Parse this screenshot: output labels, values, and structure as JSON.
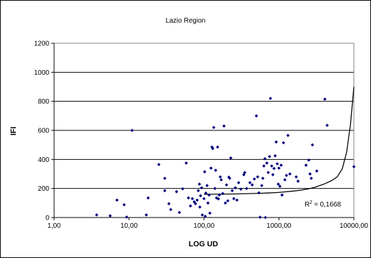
{
  "chart_data": {
    "type": "scatter",
    "title": "Lazio Region",
    "xlabel": "LOG UD",
    "ylabel": "IFI",
    "x_scale": "log",
    "xlim": [
      1,
      10000
    ],
    "ylim": [
      0,
      1200
    ],
    "x_ticks": [
      1,
      10,
      100,
      1000,
      10000
    ],
    "x_tick_labels": [
      "1,00",
      "10,00",
      "100,00",
      "1000,00",
      "10000,00"
    ],
    "y_ticks": [
      0,
      200,
      400,
      600,
      800,
      1000,
      1200
    ],
    "y_tick_labels": [
      "0",
      "200",
      "400",
      "600",
      "800",
      "1000",
      "1200"
    ],
    "grid": "horizontal",
    "legend": "none",
    "colors": {
      "points": "#000080",
      "trendline": "#000000",
      "gridlines": "#000000"
    },
    "r_squared_label": "R",
    "r_squared_exp": "2",
    "r_squared_value": " = 0,1668",
    "points": [
      {
        "x": 3.7,
        "y": 18
      },
      {
        "x": 5.6,
        "y": 12
      },
      {
        "x": 6.9,
        "y": 120
      },
      {
        "x": 8.6,
        "y": 88
      },
      {
        "x": 9.3,
        "y": 3
      },
      {
        "x": 11,
        "y": 600
      },
      {
        "x": 17,
        "y": 18
      },
      {
        "x": 18,
        "y": 135
      },
      {
        "x": 25,
        "y": 365
      },
      {
        "x": 30,
        "y": 270
      },
      {
        "x": 30,
        "y": 185
      },
      {
        "x": 34,
        "y": 95
      },
      {
        "x": 36,
        "y": 55
      },
      {
        "x": 43,
        "y": 178
      },
      {
        "x": 47,
        "y": 35
      },
      {
        "x": 52,
        "y": 198
      },
      {
        "x": 58,
        "y": 375
      },
      {
        "x": 62,
        "y": 135
      },
      {
        "x": 66,
        "y": 80
      },
      {
        "x": 70,
        "y": 130
      },
      {
        "x": 74,
        "y": 108
      },
      {
        "x": 77,
        "y": 95
      },
      {
        "x": 81,
        "y": 120
      },
      {
        "x": 84,
        "y": 185
      },
      {
        "x": 87,
        "y": 230
      },
      {
        "x": 88,
        "y": 72
      },
      {
        "x": 90,
        "y": 150
      },
      {
        "x": 93,
        "y": 205
      },
      {
        "x": 95,
        "y": 18
      },
      {
        "x": 100,
        "y": 130
      },
      {
        "x": 102,
        "y": 315
      },
      {
        "x": 104,
        "y": 8
      },
      {
        "x": 106,
        "y": 168
      },
      {
        "x": 110,
        "y": 220
      },
      {
        "x": 113,
        "y": 100
      },
      {
        "x": 117,
        "y": 155
      },
      {
        "x": 120,
        "y": 30
      },
      {
        "x": 124,
        "y": 340
      },
      {
        "x": 128,
        "y": 485
      },
      {
        "x": 131,
        "y": 475
      },
      {
        "x": 135,
        "y": 620
      },
      {
        "x": 140,
        "y": 200
      },
      {
        "x": 143,
        "y": 325
      },
      {
        "x": 147,
        "y": 135
      },
      {
        "x": 152,
        "y": 485
      },
      {
        "x": 156,
        "y": 128
      },
      {
        "x": 160,
        "y": 155
      },
      {
        "x": 165,
        "y": 280
      },
      {
        "x": 170,
        "y": 260
      },
      {
        "x": 178,
        "y": 165
      },
      {
        "x": 185,
        "y": 630
      },
      {
        "x": 193,
        "y": 100
      },
      {
        "x": 200,
        "y": 225
      },
      {
        "x": 208,
        "y": 115
      },
      {
        "x": 215,
        "y": 278
      },
      {
        "x": 220,
        "y": 270
      },
      {
        "x": 228,
        "y": 410
      },
      {
        "x": 238,
        "y": 185
      },
      {
        "x": 250,
        "y": 130
      },
      {
        "x": 262,
        "y": 205
      },
      {
        "x": 275,
        "y": 120
      },
      {
        "x": 290,
        "y": 240
      },
      {
        "x": 310,
        "y": 195
      },
      {
        "x": 340,
        "y": 295
      },
      {
        "x": 350,
        "y": 310
      },
      {
        "x": 370,
        "y": 200
      },
      {
        "x": 410,
        "y": 240
      },
      {
        "x": 440,
        "y": 225
      },
      {
        "x": 470,
        "y": 265
      },
      {
        "x": 500,
        "y": 700
      },
      {
        "x": 520,
        "y": 280
      },
      {
        "x": 540,
        "y": 170
      },
      {
        "x": 560,
        "y": 2
      },
      {
        "x": 590,
        "y": 220
      },
      {
        "x": 610,
        "y": 270
      },
      {
        "x": 630,
        "y": 355
      },
      {
        "x": 650,
        "y": 405
      },
      {
        "x": 660,
        "y": 0
      },
      {
        "x": 690,
        "y": 375
      },
      {
        "x": 720,
        "y": 310
      },
      {
        "x": 750,
        "y": 420
      },
      {
        "x": 770,
        "y": 820
      },
      {
        "x": 800,
        "y": 355
      },
      {
        "x": 830,
        "y": 295
      },
      {
        "x": 860,
        "y": 338
      },
      {
        "x": 890,
        "y": 425
      },
      {
        "x": 920,
        "y": 520
      },
      {
        "x": 950,
        "y": 370
      },
      {
        "x": 980,
        "y": 230
      },
      {
        "x": 1000,
        "y": 340
      },
      {
        "x": 1030,
        "y": 215
      },
      {
        "x": 1070,
        "y": 360
      },
      {
        "x": 1100,
        "y": 155
      },
      {
        "x": 1150,
        "y": 515
      },
      {
        "x": 1200,
        "y": 260
      },
      {
        "x": 1260,
        "y": 290
      },
      {
        "x": 1320,
        "y": 565
      },
      {
        "x": 1400,
        "y": 300
      },
      {
        "x": 1700,
        "y": 280
      },
      {
        "x": 1800,
        "y": 250
      },
      {
        "x": 2300,
        "y": 360
      },
      {
        "x": 2500,
        "y": 395
      },
      {
        "x": 2600,
        "y": 300
      },
      {
        "x": 2700,
        "y": 270
      },
      {
        "x": 2800,
        "y": 500
      },
      {
        "x": 3200,
        "y": 320
      },
      {
        "x": 4100,
        "y": 815
      },
      {
        "x": 4400,
        "y": 635
      },
      {
        "x": 10000,
        "y": 350
      }
    ],
    "trendline": {
      "type": "exponential",
      "x_start": 100,
      "x_end": 10000,
      "points": [
        {
          "x": 100,
          "y": 160
        },
        {
          "x": 200,
          "y": 161
        },
        {
          "x": 300,
          "y": 163
        },
        {
          "x": 500,
          "y": 166
        },
        {
          "x": 750,
          "y": 169
        },
        {
          "x": 1000,
          "y": 173
        },
        {
          "x": 1500,
          "y": 181
        },
        {
          "x": 2000,
          "y": 189
        },
        {
          "x": 2500,
          "y": 198
        },
        {
          "x": 3000,
          "y": 208
        },
        {
          "x": 4000,
          "y": 230
        },
        {
          "x": 5000,
          "y": 253
        },
        {
          "x": 6000,
          "y": 280
        },
        {
          "x": 7000,
          "y": 335
        },
        {
          "x": 8000,
          "y": 450
        },
        {
          "x": 9000,
          "y": 640
        },
        {
          "x": 10000,
          "y": 900
        }
      ]
    }
  }
}
